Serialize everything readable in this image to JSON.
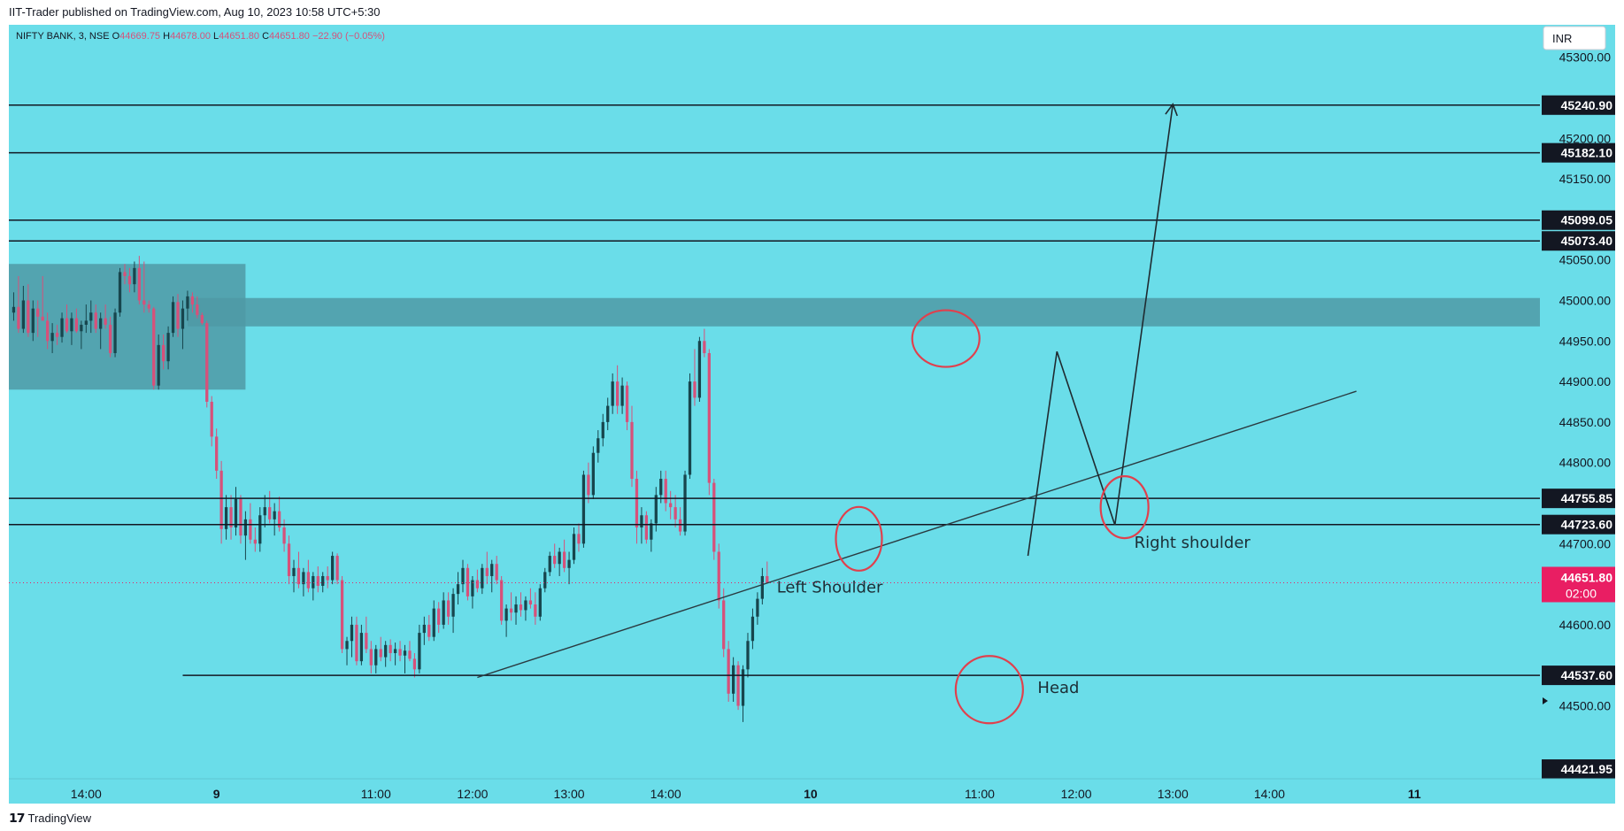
{
  "header": {
    "published_text": "IIT-Trader published on TradingView.com, Aug 10, 2023 10:58 UTC+5:30"
  },
  "footer": {
    "brand": "TradingView",
    "logo_glyph": "𝟭𝟳"
  },
  "colors": {
    "background": "#6adde9",
    "up": "#17454d",
    "down": "#d6517a",
    "zone": "#4f9aa6",
    "line": "#131722",
    "annotation": "#e0404d",
    "price_badge": "#e91e63"
  },
  "chart_data": {
    "type": "candlestick",
    "symbol": "NIFTY BANK, 3, NSE",
    "ohlc_labels": {
      "O": "44669.75",
      "H": "44678.00",
      "L": "44651.80",
      "C": "44651.80",
      "change": "−22.90 (−0.05%)"
    },
    "currency": "INR",
    "ylim": [
      44410,
      45340
    ],
    "y_ticks": [
      "45300.00",
      "45200.00",
      "45150.00",
      "45050.00",
      "45000.00",
      "44950.00",
      "44900.00",
      "44850.00",
      "44800.00",
      "44700.00",
      "44600.00",
      "44500.00"
    ],
    "x_ticks": [
      {
        "label": "14:00",
        "i": 15
      },
      {
        "label": "9",
        "i": 42
      },
      {
        "label": "11:00",
        "i": 75
      },
      {
        "label": "12:00",
        "i": 95
      },
      {
        "label": "13:00",
        "i": 115
      },
      {
        "label": "14:00",
        "i": 135
      },
      {
        "label": "10",
        "i": 165
      },
      {
        "label": "11:00",
        "i": 200
      },
      {
        "label": "12:00",
        "i": 220
      },
      {
        "label": "13:00",
        "i": 240
      },
      {
        "label": "14:00",
        "i": 260
      },
      {
        "label": "11",
        "i": 290
      }
    ],
    "x_range": [
      -1,
      316
    ],
    "current_price": {
      "value": 44651.8,
      "label": "44651.80",
      "timer": "02:00"
    },
    "horizontal_levels": [
      {
        "value": 45240.9,
        "label": "45240.90"
      },
      {
        "value": 45182.1,
        "label": "45182.10"
      },
      {
        "value": 45099.05,
        "label": "45099.05"
      },
      {
        "value": 45073.4,
        "label": "45073.40"
      },
      {
        "value": 44755.85,
        "label": "44755.85"
      },
      {
        "value": 44723.6,
        "label": "44723.60"
      },
      {
        "value": 44537.6,
        "label": "44537.60",
        "from_i": 35
      },
      {
        "value": 44421.95,
        "label": "44421.95",
        "hidden_line": true
      }
    ],
    "zones": [
      {
        "i0": -1,
        "i1": 48,
        "top": 45045,
        "bottom": 44890
      },
      {
        "i0": 36,
        "i1": 316,
        "top": 45003,
        "bottom": 44968
      }
    ],
    "trendline": {
      "i0": 96,
      "y0": 44535,
      "i1": 278,
      "y1": 44888
    },
    "projection": [
      {
        "i": 210,
        "y": 44685
      },
      {
        "i": 216,
        "y": 44937
      },
      {
        "i": 228,
        "y": 44723
      },
      {
        "i": 240,
        "y": 45242
      }
    ],
    "annotations": [
      {
        "text": "Left Shoulder",
        "i": 158,
        "y": 44640
      },
      {
        "text": "Head",
        "i": 212,
        "y": 44516
      },
      {
        "text": "Right shoulder",
        "i": 232,
        "y": 44695
      }
    ],
    "circles": [
      {
        "i": 175,
        "y": 44706,
        "rx": 26,
        "ry": 36
      },
      {
        "i": 193,
        "y": 44953,
        "rx": 38,
        "ry": 32
      },
      {
        "i": 202,
        "y": 44520,
        "rx": 38,
        "ry": 38
      },
      {
        "i": 230,
        "y": 44745,
        "rx": 27,
        "ry": 35
      }
    ],
    "candles": [
      [
        44985,
        45010,
        44975,
        44992
      ],
      [
        44992,
        45030,
        44960,
        44965
      ],
      [
        44965,
        45018,
        44960,
        45000
      ],
      [
        45000,
        45020,
        44955,
        44960
      ],
      [
        44960,
        45000,
        44950,
        44990
      ],
      [
        44990,
        45000,
        44955,
        44980
      ],
      [
        44980,
        45030,
        44975,
        44975
      ],
      [
        44975,
        44985,
        44940,
        44950
      ],
      [
        44950,
        44972,
        44935,
        44960
      ],
      [
        44960,
        44970,
        44945,
        44955
      ],
      [
        44955,
        44985,
        44948,
        44978
      ],
      [
        44978,
        44995,
        44960,
        44962
      ],
      [
        44962,
        44985,
        44945,
        44978
      ],
      [
        44978,
        44990,
        44960,
        44962
      ],
      [
        44962,
        44975,
        44940,
        44970
      ],
      [
        44970,
        44995,
        44960,
        44975
      ],
      [
        44975,
        45000,
        44960,
        44985
      ],
      [
        44985,
        44995,
        44960,
        44965
      ],
      [
        44965,
        44985,
        44940,
        44978
      ],
      [
        44978,
        44995,
        44965,
        44970
      ],
      [
        44970,
        44980,
        44930,
        44935
      ],
      [
        44935,
        44990,
        44930,
        44985
      ],
      [
        44985,
        45040,
        44980,
        45035
      ],
      [
        45035,
        45045,
        45020,
        45030
      ],
      [
        45030,
        45040,
        45010,
        45020
      ],
      [
        45020,
        45048,
        45010,
        45040
      ],
      [
        45040,
        45055,
        44995,
        45000
      ],
      [
        45000,
        45048,
        44985,
        44995
      ],
      [
        44995,
        45000,
        44985,
        44990
      ],
      [
        44990,
        44992,
        44890,
        44895
      ],
      [
        44895,
        44958,
        44890,
        44945
      ],
      [
        44945,
        44958,
        44915,
        44925
      ],
      [
        44925,
        44968,
        44915,
        44960
      ],
      [
        44960,
        45005,
        44955,
        44998
      ],
      [
        44998,
        45008,
        44955,
        44965
      ],
      [
        44965,
        45000,
        44940,
        44990
      ],
      [
        44990,
        45012,
        44975,
        45005
      ],
      [
        45005,
        45010,
        44985,
        44995
      ],
      [
        44995,
        45005,
        44978,
        44982
      ],
      [
        44982,
        44985,
        44970,
        44972
      ],
      [
        44972,
        44975,
        44868,
        44875
      ],
      [
        44875,
        44882,
        44820,
        44832
      ],
      [
        44832,
        44842,
        44780,
        44790
      ],
      [
        44790,
        44802,
        44700,
        44718
      ],
      [
        44718,
        44760,
        44705,
        44745
      ],
      [
        44745,
        44760,
        44705,
        44720
      ],
      [
        44720,
        44770,
        44710,
        44755
      ],
      [
        44755,
        44760,
        44700,
        44710
      ],
      [
        44710,
        44740,
        44680,
        44730
      ],
      [
        44730,
        44750,
        44700,
        44705
      ],
      [
        44705,
        44720,
        44690,
        44700
      ],
      [
        44700,
        44745,
        44690,
        44735
      ],
      [
        44735,
        44760,
        44720,
        44745
      ],
      [
        44745,
        44765,
        44725,
        44730
      ],
      [
        44730,
        44750,
        44710,
        44740
      ],
      [
        44740,
        44758,
        44715,
        44720
      ],
      [
        44720,
        44730,
        44690,
        44700
      ],
      [
        44700,
        44710,
        44650,
        44660
      ],
      [
        44660,
        44680,
        44640,
        44670
      ],
      [
        44670,
        44690,
        44645,
        44650
      ],
      [
        44650,
        44670,
        44635,
        44665
      ],
      [
        44665,
        44680,
        44640,
        44645
      ],
      [
        44645,
        44665,
        44630,
        44660
      ],
      [
        44660,
        44672,
        44640,
        44648
      ],
      [
        44648,
        44665,
        44640,
        44660
      ],
      [
        44660,
        44672,
        44645,
        44655
      ],
      [
        44655,
        44690,
        44650,
        44685
      ],
      [
        44685,
        44688,
        44650,
        44655
      ],
      [
        44655,
        44660,
        44565,
        44570
      ],
      [
        44570,
        44585,
        44550,
        44580
      ],
      [
        44580,
        44610,
        44560,
        44600
      ],
      [
        44600,
        44610,
        44550,
        44555
      ],
      [
        44555,
        44600,
        44550,
        44590
      ],
      [
        44590,
        44610,
        44565,
        44570
      ],
      [
        44570,
        44580,
        44540,
        44550
      ],
      [
        44550,
        44575,
        44540,
        44570
      ],
      [
        44570,
        44585,
        44555,
        44560
      ],
      [
        44560,
        44580,
        44548,
        44575
      ],
      [
        44575,
        44582,
        44555,
        44565
      ],
      [
        44565,
        44578,
        44550,
        44570
      ],
      [
        44570,
        44580,
        44555,
        44562
      ],
      [
        44562,
        44575,
        44540,
        44568
      ],
      [
        44568,
        44580,
        44555,
        44558
      ],
      [
        44558,
        44565,
        44535,
        44545
      ],
      [
        44545,
        44600,
        44540,
        44590
      ],
      [
        44590,
        44610,
        44575,
        44600
      ],
      [
        44600,
        44612,
        44580,
        44585
      ],
      [
        44585,
        44630,
        44580,
        44620
      ],
      [
        44620,
        44628,
        44590,
        44600
      ],
      [
        44600,
        44640,
        44595,
        44630
      ],
      [
        44630,
        44640,
        44600,
        44610
      ],
      [
        44610,
        44645,
        44590,
        44638
      ],
      [
        44638,
        44665,
        44625,
        44650
      ],
      [
        44650,
        44680,
        44640,
        44670
      ],
      [
        44670,
        44675,
        44630,
        44635
      ],
      [
        44635,
        44660,
        44620,
        44655
      ],
      [
        44655,
        44668,
        44640,
        44645
      ],
      [
        44645,
        44675,
        44638,
        44670
      ],
      [
        44670,
        44690,
        44650,
        44660
      ],
      [
        44660,
        44680,
        44640,
        44675
      ],
      [
        44675,
        44685,
        44650,
        44655
      ],
      [
        44655,
        44660,
        44600,
        44605
      ],
      [
        44605,
        44625,
        44585,
        44620
      ],
      [
        44620,
        44640,
        44605,
        44615
      ],
      [
        44615,
        44635,
        44600,
        44625
      ],
      [
        44625,
        44640,
        44610,
        44618
      ],
      [
        44618,
        44635,
        44605,
        44630
      ],
      [
        44630,
        44645,
        44620,
        44625
      ],
      [
        44625,
        44640,
        44600,
        44610
      ],
      [
        44610,
        44650,
        44605,
        44645
      ],
      [
        44645,
        44670,
        44640,
        44665
      ],
      [
        44665,
        44690,
        44660,
        44685
      ],
      [
        44685,
        44700,
        44670,
        44675
      ],
      [
        44675,
        44695,
        44660,
        44690
      ],
      [
        44690,
        44705,
        44665,
        44670
      ],
      [
        44670,
        44690,
        44650,
        44680
      ],
      [
        44680,
        44720,
        44675,
        44712
      ],
      [
        44712,
        44725,
        44690,
        44700
      ],
      [
        44700,
        44790,
        44695,
        44785
      ],
      [
        44785,
        44800,
        44750,
        44760
      ],
      [
        44760,
        44820,
        44755,
        44812
      ],
      [
        44812,
        44840,
        44800,
        44830
      ],
      [
        44830,
        44860,
        44820,
        44850
      ],
      [
        44850,
        44880,
        44840,
        44870
      ],
      [
        44870,
        44910,
        44860,
        44900
      ],
      [
        44900,
        44920,
        44860,
        44870
      ],
      [
        44870,
        44905,
        44860,
        44895
      ],
      [
        44895,
        44900,
        44840,
        44850
      ],
      [
        44850,
        44870,
        44770,
        44780
      ],
      [
        44780,
        44790,
        44700,
        44720
      ],
      [
        44720,
        44745,
        44700,
        44735
      ],
      [
        44735,
        44740,
        44700,
        44705
      ],
      [
        44705,
        44730,
        44690,
        44725
      ],
      [
        44725,
        44770,
        44715,
        44760
      ],
      [
        44760,
        44790,
        44750,
        44780
      ],
      [
        44780,
        44790,
        44740,
        44750
      ],
      [
        44750,
        44765,
        44730,
        44745
      ],
      [
        44745,
        44760,
        44720,
        44730
      ],
      [
        44730,
        44745,
        44710,
        44715
      ],
      [
        44715,
        44790,
        44710,
        44785
      ],
      [
        44785,
        44910,
        44780,
        44900
      ],
      [
        44900,
        44940,
        44870,
        44880
      ],
      [
        44880,
        44955,
        44875,
        44950
      ],
      [
        44950,
        44965,
        44930,
        44935
      ],
      [
        44935,
        44940,
        44760,
        44775
      ],
      [
        44775,
        44780,
        44680,
        44690
      ],
      [
        44690,
        44700,
        44620,
        44630
      ],
      [
        44630,
        44645,
        44560,
        44570
      ],
      [
        44570,
        44580,
        44505,
        44515
      ],
      [
        44515,
        44560,
        44505,
        44550
      ],
      [
        44550,
        44555,
        44495,
        44500
      ],
      [
        44500,
        44550,
        44480,
        44545
      ],
      [
        44545,
        44590,
        44535,
        44580
      ],
      [
        44580,
        44620,
        44570,
        44610
      ],
      [
        44610,
        44640,
        44600,
        44632
      ],
      [
        44632,
        44670,
        44625,
        44660
      ],
      [
        44660,
        44678,
        44651,
        44652
      ]
    ]
  }
}
